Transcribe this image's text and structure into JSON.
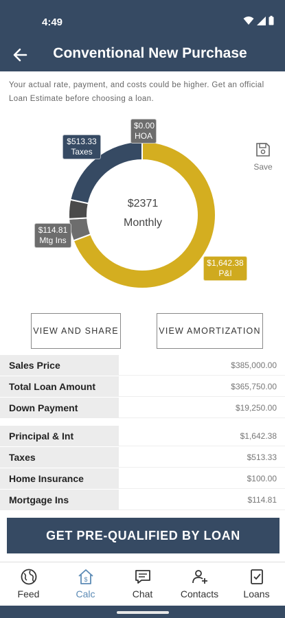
{
  "status_bar": {
    "time": "4:49"
  },
  "app_bar": {
    "title": "Conventional New Purchase"
  },
  "disclaimer": "Your actual rate, payment, and costs could be higher. Get an official Loan Estimate before choosing a loan.",
  "chart_data": {
    "type": "pie",
    "center_amount": "$2371",
    "center_label": "Monthly",
    "slices": [
      {
        "name": "P&I",
        "value": 1642.38,
        "label": "$1,642.38",
        "color": "#d4ae20"
      },
      {
        "name": "Mtg Ins",
        "value": 114.81,
        "label": "$114.81",
        "color": "#6d6d6d"
      },
      {
        "name": "Other",
        "value": 100.0,
        "label": "",
        "color": "#4a4a4a"
      },
      {
        "name": "Taxes",
        "value": 513.33,
        "label": "$513.33",
        "color": "#364a63"
      },
      {
        "name": "HOA",
        "value": 0.0,
        "label": "$0.00",
        "color": "#6d6d6d"
      }
    ]
  },
  "save": {
    "label": "Save"
  },
  "buttons": {
    "view_share": "VIEW AND SHARE",
    "view_amortization": "VIEW AMORTIZATION"
  },
  "loan_table": [
    {
      "label": "Sales Price",
      "value": "$385,000.00"
    },
    {
      "label": "Total Loan Amount",
      "value": "$365,750.00"
    },
    {
      "label": "Down Payment",
      "value": "$19,250.00"
    }
  ],
  "payment_table": [
    {
      "label": "Principal & Int",
      "value": "$1,642.38"
    },
    {
      "label": "Taxes",
      "value": "$513.33"
    },
    {
      "label": "Home Insurance",
      "value": "$100.00"
    },
    {
      "label": "Mortgage Ins",
      "value": "$114.81"
    }
  ],
  "cta": "GET PRE-QUALIFIED BY LOAN",
  "nav": {
    "items": [
      {
        "label": "Feed",
        "icon": "globe-icon"
      },
      {
        "label": "Calc",
        "icon": "calculator-house-icon"
      },
      {
        "label": "Chat",
        "icon": "chat-icon"
      },
      {
        "label": "Contacts",
        "icon": "contacts-icon"
      },
      {
        "label": "Loans",
        "icon": "loans-icon"
      }
    ],
    "active": "Calc"
  },
  "colors": {
    "primary": "#364a63",
    "accent": "#d4ae20",
    "active_nav": "#5b8ab5"
  }
}
